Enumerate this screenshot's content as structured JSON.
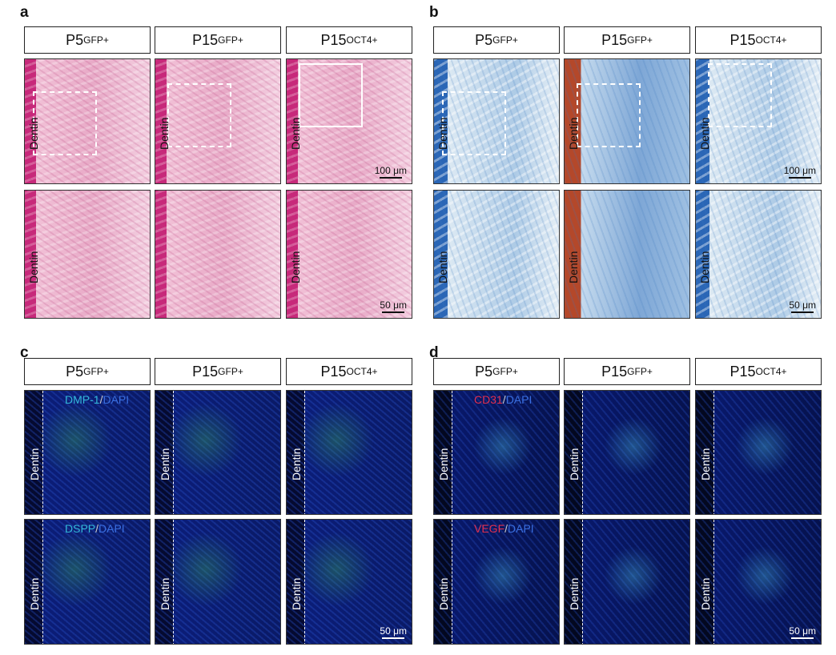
{
  "panels": [
    {
      "letter": "a",
      "headers": [
        {
          "base": "P5",
          "sup": "GFP+"
        },
        {
          "base": "P15",
          "sup": "GFP+"
        },
        {
          "base": "P15",
          "sup": "OCT4+"
        }
      ],
      "images": [
        [
          {
            "label": "Dentin"
          },
          {
            "label": "Dentin"
          },
          {
            "label": "Dentin",
            "scale_bar": "100 μm"
          }
        ],
        [
          {
            "label": "Dentin"
          },
          {},
          {
            "label": "Dentin",
            "scale_bar": "50 μm"
          }
        ]
      ]
    },
    {
      "letter": "b",
      "headers": [
        {
          "base": "P5",
          "sup": "GFP+"
        },
        {
          "base": "P15",
          "sup": "GFP+"
        },
        {
          "base": "P15",
          "sup": "OCT4+"
        }
      ],
      "images": [
        [
          {
            "label": "Dentin"
          },
          {
            "label": "Dentin"
          },
          {
            "label": "Dentin",
            "scale_bar": "100 μm"
          }
        ],
        [
          {
            "label": "Dentin"
          },
          {
            "label": "Dentin"
          },
          {
            "label": "Dentin",
            "scale_bar": "50 μm"
          }
        ]
      ]
    },
    {
      "letter": "c",
      "headers": [
        {
          "base": "P5",
          "sup": "GFP+"
        },
        {
          "base": "P15",
          "sup": "GFP+"
        },
        {
          "base": "P15",
          "sup": "OCT4+"
        }
      ],
      "images": [
        [
          {
            "label": "Dentin",
            "stain": [
              "DMP-1",
              "/",
              "DAPI"
            ]
          },
          {
            "label": "Dentin"
          },
          {
            "label": "Dentin"
          }
        ],
        [
          {
            "label": "Dentin",
            "stain": [
              "DSPP",
              "/",
              "DAPI"
            ]
          },
          {
            "label": "Dentin"
          },
          {
            "label": "Dentin",
            "scale_bar": "50 μm"
          }
        ]
      ]
    },
    {
      "letter": "d",
      "headers": [
        {
          "base": "P5",
          "sup": "GFP+"
        },
        {
          "base": "P15",
          "sup": "GFP+"
        },
        {
          "base": "P15",
          "sup": "OCT4+"
        }
      ],
      "images": [
        [
          {
            "label": "Dentin",
            "stain": [
              "CD31",
              "/",
              "DAPI"
            ]
          },
          {
            "label": "Dentin"
          },
          {
            "label": "Dentin"
          }
        ],
        [
          {
            "label": "Dentin",
            "stain": [
              "VEGF",
              "/",
              "DAPI"
            ]
          },
          {
            "label": "Dentin"
          },
          {
            "label": "Dentin",
            "scale_bar": "50 μm"
          }
        ]
      ]
    }
  ]
}
